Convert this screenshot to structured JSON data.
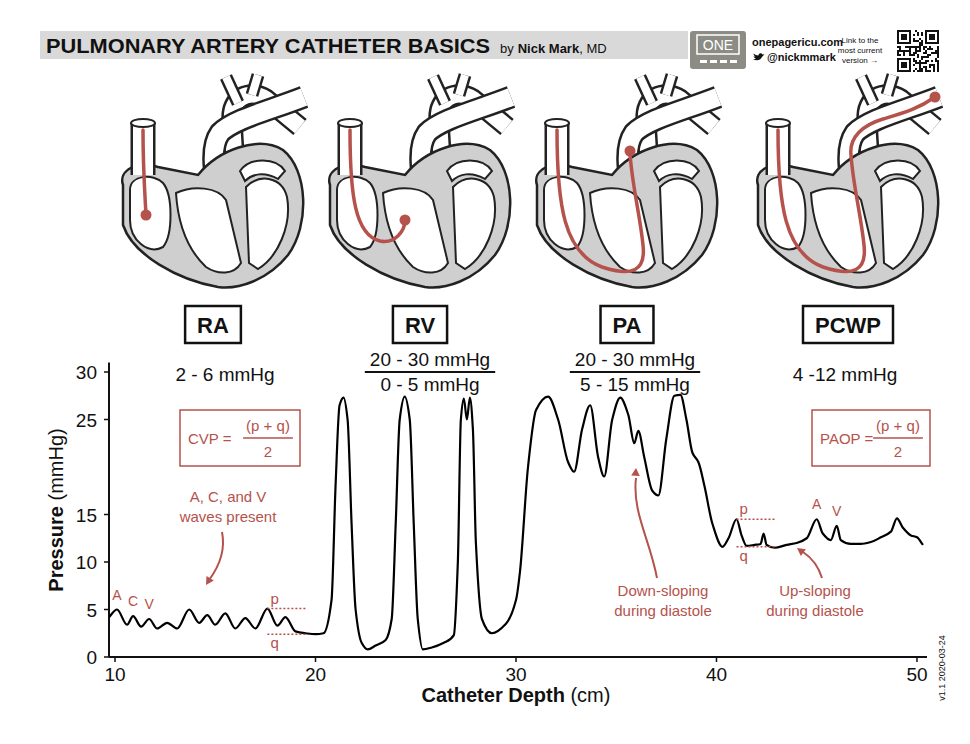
{
  "header": {
    "title": "PULMONARY ARTERY CATHETER BASICS",
    "byline": [
      "by",
      "Nick Mark",
      ", MD"
    ],
    "logo": "ONE",
    "website": "onepagericu.com",
    "twitter": "@nickmmark",
    "link_note": [
      "Link to the",
      "most current",
      "version →"
    ]
  },
  "stages": [
    {
      "label": "RA",
      "pressure": [
        "2 - 6 mmHg"
      ]
    },
    {
      "label": "RV",
      "pressure": [
        "20 - 30 mmHg",
        "0 - 5 mmHg"
      ]
    },
    {
      "label": "PA",
      "pressure": [
        "20 - 30 mmHg",
        "5 - 15 mmHg"
      ]
    },
    {
      "label": "PCWP",
      "pressure": [
        "4 -12 mmHg"
      ]
    }
  ],
  "chart_data": {
    "type": "line",
    "x_label": "Catheter Depth (cm)",
    "y_label": "Pressure (mmHg)",
    "xlim": [
      9.7,
      50.5
    ],
    "ylim": [
      0,
      31
    ],
    "xticks": [
      10,
      20,
      30,
      40,
      50
    ],
    "yticks": [
      0,
      5,
      10,
      15,
      25,
      30
    ],
    "color": "#000000",
    "x": [
      9.7,
      10.1,
      10.6,
      10.9,
      11.3,
      11.7,
      12.1,
      12.6,
      13.1,
      13.7,
      14.2,
      14.6,
      15.0,
      15.5,
      16.0,
      16.5,
      17.0,
      17.6,
      18.1,
      18.5,
      19.0,
      19.5,
      20.0,
      20.4,
      20.8,
      21.0,
      21.2,
      21.4,
      21.6,
      21.8,
      22.0,
      22.3,
      22.6,
      23.0,
      23.5,
      23.8,
      24.0,
      24.2,
      24.45,
      24.7,
      24.9,
      25.1,
      25.35,
      25.8,
      26.4,
      26.9,
      27.1,
      27.25,
      27.4,
      27.55,
      27.7,
      27.85,
      28.0,
      28.3,
      28.8,
      29.5,
      30.0,
      30.2,
      30.6,
      31.0,
      31.6,
      32.1,
      32.6,
      32.9,
      33.3,
      33.7,
      34.1,
      34.4,
      34.8,
      35.2,
      35.6,
      35.9,
      36.1,
      36.4,
      36.8,
      37.1,
      37.5,
      37.9,
      38.2,
      38.5,
      38.8,
      39.1,
      39.4,
      39.8,
      40.3,
      40.6,
      41.0,
      41.25,
      41.5,
      41.9,
      42.2,
      42.35,
      42.5,
      42.9,
      43.5,
      44.0,
      44.5,
      45.0,
      45.3,
      45.7,
      46.0,
      46.2,
      46.7,
      47.2,
      47.7,
      48.2,
      48.7,
      49.0,
      49.3,
      49.7,
      50.0,
      50.3
    ],
    "values": [
      4.2,
      5.0,
      3.4,
      4.3,
      3.2,
      4.0,
      3.0,
      3.6,
      3.0,
      5.0,
      3.6,
      4.4,
      3.4,
      4.6,
      3.0,
      4.1,
      3.0,
      5.1,
      3.3,
      4.2,
      2.7,
      2.5,
      2.4,
      2.5,
      6.0,
      18.0,
      26.5,
      27.3,
      25.0,
      14.0,
      5.0,
      1.5,
      0.8,
      1.2,
      1.8,
      4.0,
      14.0,
      25.0,
      27.4,
      25.0,
      14.0,
      4.0,
      0.8,
      1.0,
      1.5,
      2.3,
      10.0,
      25.0,
      27.2,
      25.0,
      27.3,
      24.0,
      12.0,
      4.0,
      2.5,
      3.5,
      6.0,
      9.0,
      20.0,
      26.0,
      27.4,
      25.0,
      20.5,
      19.5,
      24.0,
      26.5,
      21.0,
      19.0,
      25.0,
      27.3,
      25.5,
      22.5,
      23.8,
      21.0,
      17.5,
      17.0,
      23.0,
      27.5,
      27.6,
      25.0,
      21.5,
      20.5,
      18.0,
      14.0,
      11.6,
      12.5,
      14.5,
      12.8,
      11.7,
      11.8,
      11.9,
      13.0,
      11.8,
      11.5,
      11.8,
      12.0,
      12.5,
      14.5,
      13.0,
      12.3,
      13.8,
      12.3,
      11.9,
      11.9,
      12.1,
      12.6,
      13.2,
      14.6,
      13.6,
      12.8,
      12.6,
      11.8
    ],
    "wave_labels": [
      {
        "label": "A",
        "x": 10.1,
        "y": 5.0
      },
      {
        "label": "C",
        "x": 10.9,
        "y": 4.3
      },
      {
        "label": "V",
        "x": 11.7,
        "y": 4.0
      },
      {
        "label": "A",
        "x": 45.0,
        "y": 14.5
      },
      {
        "label": "V",
        "x": 46.0,
        "y": 13.8
      }
    ],
    "levels": [
      {
        "label": "p",
        "x": 17.6,
        "y": 5.1
      },
      {
        "label": "q",
        "x": 17.6,
        "y": 2.4
      },
      {
        "label": "p",
        "x": 41.0,
        "y": 14.5
      },
      {
        "label": "q",
        "x": 41.0,
        "y": 11.6
      }
    ],
    "formulas": [
      {
        "name": "CVP =",
        "numerator": "(p + q)",
        "denominator": "2"
      },
      {
        "name": "PAOP =",
        "numerator": "(p + q)",
        "denominator": "2"
      }
    ],
    "notes": [
      {
        "lines": [
          "A, C, and V",
          "waves present"
        ]
      },
      {
        "lines": [
          "Down-sloping",
          "during diastole"
        ]
      },
      {
        "lines": [
          "Up-sloping",
          "during diastole"
        ]
      }
    ]
  },
  "version": "v1.1 2020-03-24"
}
